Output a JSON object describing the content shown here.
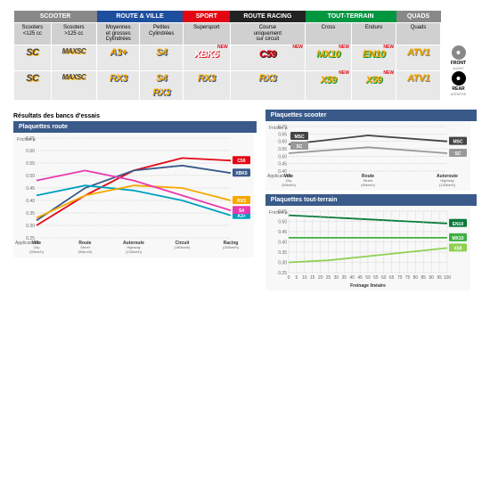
{
  "cats": [
    {
      "label": "SCOOTER",
      "bg": "#888",
      "cols": [
        {
          "t": "Scooters\n<125 cc"
        },
        {
          "t": "Scooters\n>125 cc"
        }
      ]
    },
    {
      "label": "ROUTE & VILLE",
      "bg": "#1e4f9e",
      "cols": [
        {
          "t": "Moyennes\net grosses\nCylindrées"
        },
        {
          "t": "Petites\nCylindrées"
        }
      ]
    },
    {
      "label": "SPORT",
      "bg": "#e30613",
      "cols": [
        {
          "t": "Supersport"
        }
      ]
    },
    {
      "label": "ROUTE RACING",
      "bg": "#222",
      "cols": [
        {
          "t": "Course\nuniquement\nsur circuit"
        }
      ]
    },
    {
      "label": "TOUT-TERRAIN",
      "bg": "#009640",
      "cols": [
        {
          "t": "Cross"
        },
        {
          "t": "Enduro"
        }
      ]
    },
    {
      "label": "QUADS",
      "bg": "#888",
      "cols": [
        {
          "t": "Quads"
        }
      ]
    }
  ],
  "sides": [
    {
      "ico": "#888",
      "t1": "FRONT",
      "t2": "AVANT"
    },
    {
      "ico": "#000",
      "t1": "REAR",
      "t2": "ARRIÈRE"
    }
  ],
  "rows": [
    [
      {
        "l": "SC",
        "c1": "#f6a800",
        "c2": "#444"
      },
      {
        "l": "MAXSC",
        "c1": "#f6a800",
        "c2": "#444",
        "sz": 8
      },
      {
        "l": "A3+",
        "c1": "#1e4f9e",
        "c2": "#f6a800"
      },
      {
        "l": "S4",
        "c1": "#1e4f9e",
        "c2": "#f6a800"
      },
      {
        "l": "XBK5",
        "c1": "#e30613",
        "c2": "#fff",
        "n": 1
      },
      {
        "l": "C59",
        "c1": "#222",
        "c2": "#e30613",
        "n": 1
      },
      {
        "l": "MX10",
        "c1": "#009640",
        "c2": "#f6a800",
        "n": 1
      },
      {
        "l": "EN10",
        "c1": "#009640",
        "c2": "#f6a800",
        "n": 1
      },
      {
        "l": "ATV1",
        "c1": "#888",
        "c2": "#f6a800"
      }
    ],
    [
      {
        "l": "SC",
        "c1": "#f6a800",
        "c2": "#444"
      },
      {
        "l": "MAXSC",
        "c1": "#f6a800",
        "c2": "#444",
        "sz": 8
      },
      {
        "l": "RX3",
        "c1": "#1e4f9e",
        "c2": "#f6a800"
      },
      {
        "l": "S4\nRX3",
        "c1": "#1e4f9e",
        "c2": "#f6a800",
        "dual": 1
      },
      {
        "l": "RX3",
        "c1": "#1e4f9e",
        "c2": "#f6a800"
      },
      {
        "l": "RX3",
        "c1": "#1e4f9e",
        "c2": "#f6a800"
      },
      {
        "l": "X59",
        "c1": "#009640",
        "c2": "#f6a800",
        "n": 1
      },
      {
        "l": "X59",
        "c1": "#009640",
        "c2": "#f6a800",
        "n": 1
      },
      {
        "l": "ATV1",
        "c1": "#888",
        "c2": "#f6a800"
      }
    ]
  ],
  "sect_title": "Résultats des bancs d'essais",
  "chart_route": {
    "title": "Plaquettes route",
    "ylim": [
      0.25,
      0.65
    ],
    "yticks": [
      0.25,
      0.3,
      0.35,
      0.4,
      0.45,
      0.5,
      0.55,
      0.6,
      0.65
    ],
    "xlabs": [
      [
        "Ville",
        "City",
        "(50km/h)"
      ],
      [
        "Route",
        "Street",
        "(90km/h)"
      ],
      [
        "Autoroute",
        "Highway",
        "(130km/h)"
      ],
      [
        "Circuit",
        "(180km/h)",
        ""
      ],
      [
        "Racing",
        "(250km/h)",
        ""
      ]
    ],
    "ylab": "Friction µ",
    "applab": "Applications",
    "series": [
      {
        "name": "C59",
        "c": "#e30613",
        "v": [
          0.3,
          0.42,
          0.52,
          0.57,
          0.56
        ]
      },
      {
        "name": "XBK5",
        "c": "#3a5a8a",
        "v": [
          0.32,
          0.45,
          0.52,
          0.54,
          0.51
        ]
      },
      {
        "name": "A3+",
        "c": "#00a0c0",
        "v": [
          0.42,
          0.46,
          0.44,
          0.4,
          0.34
        ]
      },
      {
        "name": "RX3",
        "c": "#f6a800",
        "v": [
          0.33,
          0.42,
          0.46,
          0.45,
          0.4
        ]
      },
      {
        "name": "S4",
        "c": "#e83ab0",
        "v": [
          0.48,
          0.52,
          0.48,
          0.42,
          0.36
        ]
      }
    ]
  },
  "chart_scooter": {
    "title": "Plaquettes scooter",
    "ylim": [
      0.4,
      0.7
    ],
    "yticks": [
      0.4,
      0.45,
      0.5,
      0.55,
      0.6,
      0.65,
      0.7
    ],
    "xlabs": [
      [
        "Ville",
        "City",
        "(50km/h)"
      ],
      [
        "Route",
        "Street",
        "(90km/h)"
      ],
      [
        "Autoroute",
        "Highway",
        "(130km/h)"
      ]
    ],
    "ylab": "Friction µ",
    "applab": "Applications",
    "series": [
      {
        "name": "MSC",
        "c": "#444",
        "v": [
          0.58,
          0.64,
          0.6
        ]
      },
      {
        "name": "SC",
        "c": "#999",
        "v": [
          0.52,
          0.56,
          0.52
        ]
      }
    ]
  },
  "chart_tt": {
    "title": "Plaquettes tout-terrain",
    "ylim": [
      0.25,
      0.55
    ],
    "yticks": [
      0.25,
      0.3,
      0.35,
      0.4,
      0.45,
      0.5,
      0.55
    ],
    "xlabs_num": [
      0,
      5,
      10,
      15,
      20,
      25,
      30,
      35,
      40,
      45,
      50,
      55,
      60,
      65,
      70,
      75,
      80,
      85,
      90,
      95,
      100
    ],
    "xlab": "Freinage linéaire",
    "ylab": "Friction µ",
    "series": [
      {
        "name": "EN10",
        "c": "#0a7a3a",
        "v": [
          0.53,
          0.52,
          0.51,
          0.5,
          0.49
        ]
      },
      {
        "name": "MX10",
        "c": "#3cb043",
        "v": [
          0.42,
          0.42,
          0.42,
          0.42,
          0.42
        ]
      },
      {
        "name": "X59",
        "c": "#8fd14f",
        "v": [
          0.3,
          0.31,
          0.33,
          0.35,
          0.37
        ]
      }
    ]
  }
}
